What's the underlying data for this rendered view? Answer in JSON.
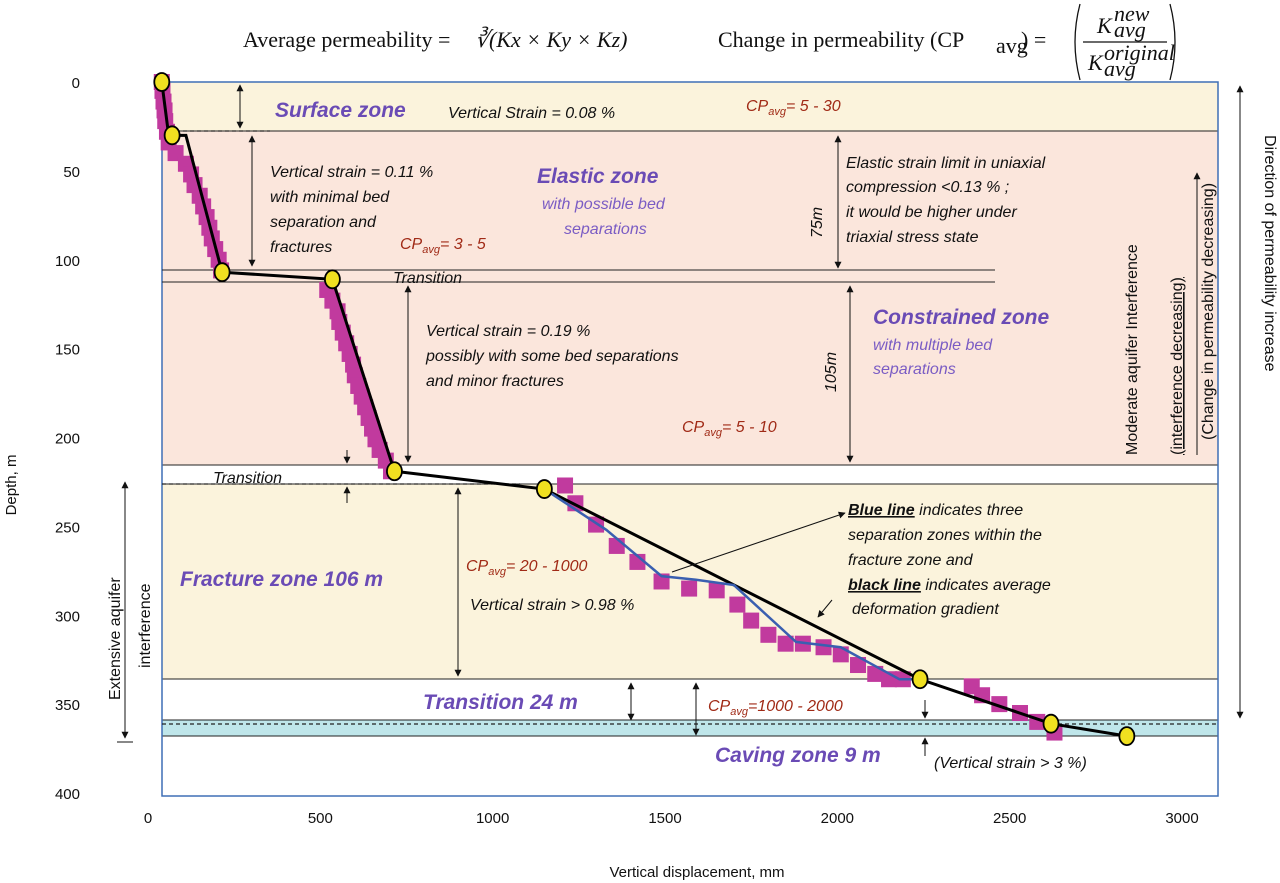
{
  "header": {
    "formula1_label": "Average permeability =",
    "formula1_expr": "∛(Kx × Ky × Kz)",
    "formula2_label": "Change in permeability (CP",
    "formula2_sub": "avg",
    "formula2_tail": ") =",
    "formula2_num": "K",
    "formula2_num_sup": "new",
    "formula2_num_sub": "avg",
    "formula2_den": "K",
    "formula2_den_sup": "original",
    "formula2_den_sub": "avg"
  },
  "chart_data": {
    "type": "scatter",
    "xlabel": "Vertical displacement, mm",
    "ylabel": "Depth, m",
    "xlim": [
      0,
      3000
    ],
    "ylim": [
      400,
      0
    ],
    "x_ticks": [
      "0",
      "500",
      "1000",
      "1500",
      "2000",
      "2500",
      "3000"
    ],
    "y_ticks": [
      "0",
      "50",
      "100",
      "150",
      "200",
      "250",
      "300",
      "350",
      "400"
    ],
    "colors": {
      "markers": "#c13a9e",
      "average_line": "#000000",
      "blue_line": "#3a5fb0",
      "key_points": "#f0e020",
      "zone_yellow": "#fbf3dc",
      "zone_pink": "#fbe6dc",
      "caving": "#bfe6ea"
    },
    "measured_points": [
      {
        "x": 40,
        "y": 0
      },
      {
        "x": 42,
        "y": 5
      },
      {
        "x": 45,
        "y": 11
      },
      {
        "x": 48,
        "y": 16
      },
      {
        "x": 50,
        "y": 22
      },
      {
        "x": 55,
        "y": 28
      },
      {
        "x": 60,
        "y": 34
      },
      {
        "x": 80,
        "y": 40
      },
      {
        "x": 110,
        "y": 46
      },
      {
        "x": 125,
        "y": 52
      },
      {
        "x": 135,
        "y": 58
      },
      {
        "x": 150,
        "y": 64
      },
      {
        "x": 160,
        "y": 70
      },
      {
        "x": 170,
        "y": 76
      },
      {
        "x": 178,
        "y": 82
      },
      {
        "x": 185,
        "y": 88
      },
      {
        "x": 195,
        "y": 94
      },
      {
        "x": 205,
        "y": 100
      },
      {
        "x": 212,
        "y": 106
      },
      {
        "x": 520,
        "y": 117
      },
      {
        "x": 535,
        "y": 123
      },
      {
        "x": 550,
        "y": 129
      },
      {
        "x": 555,
        "y": 135
      },
      {
        "x": 565,
        "y": 141
      },
      {
        "x": 575,
        "y": 147
      },
      {
        "x": 585,
        "y": 153
      },
      {
        "x": 595,
        "y": 159
      },
      {
        "x": 600,
        "y": 165
      },
      {
        "x": 610,
        "y": 171
      },
      {
        "x": 620,
        "y": 177
      },
      {
        "x": 630,
        "y": 183
      },
      {
        "x": 640,
        "y": 189
      },
      {
        "x": 650,
        "y": 195
      },
      {
        "x": 660,
        "y": 201
      },
      {
        "x": 672,
        "y": 207
      },
      {
        "x": 690,
        "y": 213
      },
      {
        "x": 705,
        "y": 219
      },
      {
        "x": 1210,
        "y": 227
      },
      {
        "x": 1240,
        "y": 237
      },
      {
        "x": 1300,
        "y": 249
      },
      {
        "x": 1360,
        "y": 261
      },
      {
        "x": 1420,
        "y": 270
      },
      {
        "x": 1490,
        "y": 281
      },
      {
        "x": 1570,
        "y": 285
      },
      {
        "x": 1650,
        "y": 286
      },
      {
        "x": 1710,
        "y": 294
      },
      {
        "x": 1750,
        "y": 303
      },
      {
        "x": 1800,
        "y": 311
      },
      {
        "x": 1850,
        "y": 316
      },
      {
        "x": 1900,
        "y": 316
      },
      {
        "x": 1960,
        "y": 318
      },
      {
        "x": 2010,
        "y": 322
      },
      {
        "x": 2060,
        "y": 328
      },
      {
        "x": 2110,
        "y": 333
      },
      {
        "x": 2150,
        "y": 336
      },
      {
        "x": 2190,
        "y": 336
      },
      {
        "x": 2390,
        "y": 340
      },
      {
        "x": 2420,
        "y": 345
      },
      {
        "x": 2470,
        "y": 350
      },
      {
        "x": 2530,
        "y": 355
      },
      {
        "x": 2580,
        "y": 360
      },
      {
        "x": 2630,
        "y": 366
      }
    ],
    "average_line": [
      {
        "x": 40,
        "y": 0
      },
      {
        "x": 60,
        "y": 30
      },
      {
        "x": 110,
        "y": 30
      },
      {
        "x": 215,
        "y": 107
      },
      {
        "x": 535,
        "y": 111
      },
      {
        "x": 715,
        "y": 219
      },
      {
        "x": 1150,
        "y": 229
      },
      {
        "x": 2240,
        "y": 336
      },
      {
        "x": 2620,
        "y": 361
      },
      {
        "x": 2840,
        "y": 368
      }
    ],
    "blue_line": [
      {
        "x": 1150,
        "y": 229
      },
      {
        "x": 1330,
        "y": 252
      },
      {
        "x": 1490,
        "y": 278
      },
      {
        "x": 1590,
        "y": 280
      },
      {
        "x": 1700,
        "y": 283
      },
      {
        "x": 1880,
        "y": 315
      },
      {
        "x": 2010,
        "y": 318
      },
      {
        "x": 2180,
        "y": 336
      },
      {
        "x": 2240,
        "y": 336
      }
    ],
    "key_points": [
      {
        "x": 40,
        "y": 0
      },
      {
        "x": 70,
        "y": 30
      },
      {
        "x": 215,
        "y": 107
      },
      {
        "x": 535,
        "y": 111
      },
      {
        "x": 715,
        "y": 219
      },
      {
        "x": 1150,
        "y": 229
      },
      {
        "x": 2240,
        "y": 336
      },
      {
        "x": 2620,
        "y": 361
      },
      {
        "x": 2840,
        "y": 368
      }
    ]
  },
  "zones": {
    "surface": "Surface zone",
    "elastic": "Elastic zone",
    "elastic_sub1": "with possible bed",
    "elastic_sub2": "separations",
    "constrained": "Constrained zone",
    "constrained_sub1": "with multiple bed",
    "constrained_sub2": "separations",
    "fracture": "Fracture zone 106 m",
    "transition24": "Transition  24 m",
    "caving": "Caving zone 9 m",
    "transition_small1": "Transition",
    "transition_small2": "Transition"
  },
  "notes": {
    "surface_strain": "Vertical Strain = 0.08 %",
    "elastic_strain1": "Vertical strain = 0.11 %",
    "elastic_strain2": "with minimal bed",
    "elastic_strain3": "separation and",
    "elastic_strain4": "fractures",
    "elastic_limit1": "Elastic strain limit in uniaxial",
    "elastic_limit2": "compression <0.13 % ;",
    "elastic_limit3": "it would be higher under",
    "elastic_limit4": "triaxial stress state",
    "constrained_strain1": "Vertical strain = 0.19 %",
    "constrained_strain2": "possibly with some bed separations",
    "constrained_strain3": "and minor fractures",
    "fracture_strain": "Vertical strain > 0.98 %",
    "blue_bold": "Blue line",
    "blue_rest1": " indicates three",
    "blue_rest2": "separation zones within the",
    "blue_rest3": "fracture zone and",
    "black_bold": "black line",
    "black_rest1": " indicates average",
    "black_rest2": "deformation gradient",
    "caving_strain": "(Vertical strain > 3 %)",
    "dim_75": "75m",
    "dim_105": "105m"
  },
  "cp_labels": {
    "cp_prefix": "CP",
    "cp_sub": "avg",
    "surface": "= 5 - 30",
    "elastic": "= 3 - 5",
    "constrained": "= 5 - 10",
    "fracture": "= 20 - 1000",
    "transition": "=1000 - 2000"
  },
  "side_labels": {
    "moderate1": "Moderate aquifer Interference",
    "moderate2": "(interference decreasing)",
    "change": "(Change in permeability decreasing)",
    "direction": "Direction of permeability increase",
    "extensive1": "Extensive aquifer",
    "extensive2": "interference"
  }
}
